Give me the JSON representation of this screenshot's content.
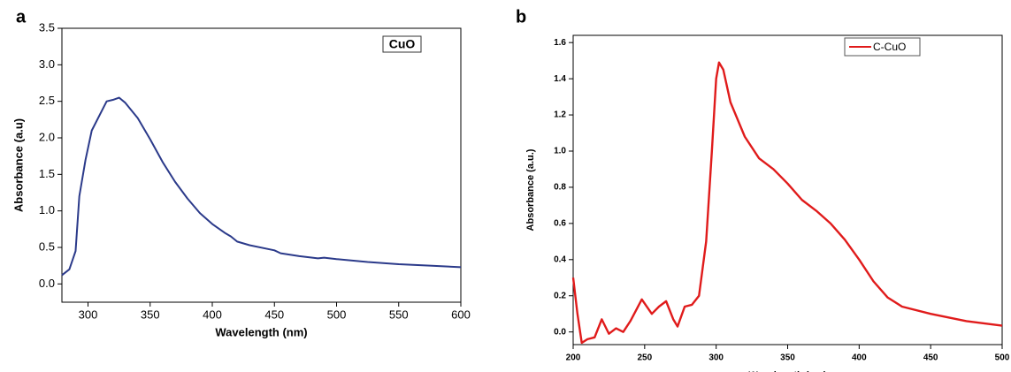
{
  "chart_data": [
    {
      "type": "line",
      "panel": "a",
      "x_label": "Wavelength (nm)",
      "y_label": "Absorbance (a.u)",
      "xlim": [
        279,
        600
      ],
      "ylim": [
        -0.25,
        3.5
      ],
      "xticks": [
        300,
        350,
        400,
        450,
        500,
        550,
        600
      ],
      "yticks": [
        {
          "value": 0,
          "label": "0.0"
        },
        0.5,
        {
          "value": 1,
          "label": "1.0"
        },
        1.5,
        {
          "value": 2,
          "label": "2.0"
        },
        2.5,
        {
          "value": 3,
          "label": "3.0"
        },
        3.5
      ],
      "legend": "top-right",
      "x": [
        279,
        285,
        290,
        293,
        298,
        303,
        315,
        320,
        325,
        330,
        340,
        350,
        360,
        370,
        380,
        390,
        400,
        410,
        415,
        420,
        430,
        450,
        455,
        470,
        485,
        490,
        500,
        525,
        550,
        575,
        600
      ],
      "series": [
        {
          "name": "CuO",
          "color": "#2b3a8a",
          "values": [
            0.12,
            0.2,
            0.45,
            1.2,
            1.7,
            2.1,
            2.5,
            2.52,
            2.55,
            2.48,
            2.27,
            1.98,
            1.67,
            1.4,
            1.17,
            0.97,
            0.82,
            0.7,
            0.65,
            0.58,
            0.53,
            0.46,
            0.42,
            0.38,
            0.35,
            0.36,
            0.34,
            0.3,
            0.27,
            0.25,
            0.23
          ]
        }
      ]
    },
    {
      "type": "line",
      "panel": "b",
      "x_label": "Wavelength (nm)",
      "y_label": "Absorbance (a.u.)",
      "xlim": [
        200,
        500
      ],
      "ylim": [
        -0.07,
        1.64
      ],
      "xticks": [
        200,
        250,
        300,
        350,
        400,
        450,
        500
      ],
      "yticks": [
        {
          "value": 0,
          "label": "0.0"
        },
        0.2,
        0.4,
        0.6,
        0.8,
        {
          "value": 1,
          "label": "1.0"
        },
        1.2,
        1.4,
        1.6
      ],
      "legend": "top-right",
      "x": [
        200,
        203,
        206,
        210,
        215,
        220,
        225,
        230,
        235,
        240,
        248,
        255,
        260,
        265,
        270,
        273,
        278,
        283,
        288,
        293,
        297,
        300,
        302,
        305,
        310,
        320,
        330,
        340,
        350,
        360,
        370,
        380,
        390,
        400,
        410,
        420,
        430,
        450,
        475,
        500
      ],
      "series": [
        {
          "name": "C-CuO",
          "color": "#e01b1b",
          "values": [
            0.3,
            0.1,
            -0.06,
            -0.04,
            -0.03,
            0.07,
            -0.01,
            0.02,
            0.0,
            0.06,
            0.18,
            0.1,
            0.14,
            0.17,
            0.07,
            0.03,
            0.14,
            0.15,
            0.2,
            0.5,
            1.0,
            1.4,
            1.49,
            1.45,
            1.27,
            1.08,
            0.96,
            0.9,
            0.82,
            0.73,
            0.67,
            0.6,
            0.51,
            0.4,
            0.28,
            0.19,
            0.14,
            0.1,
            0.06,
            0.035
          ]
        }
      ]
    }
  ]
}
